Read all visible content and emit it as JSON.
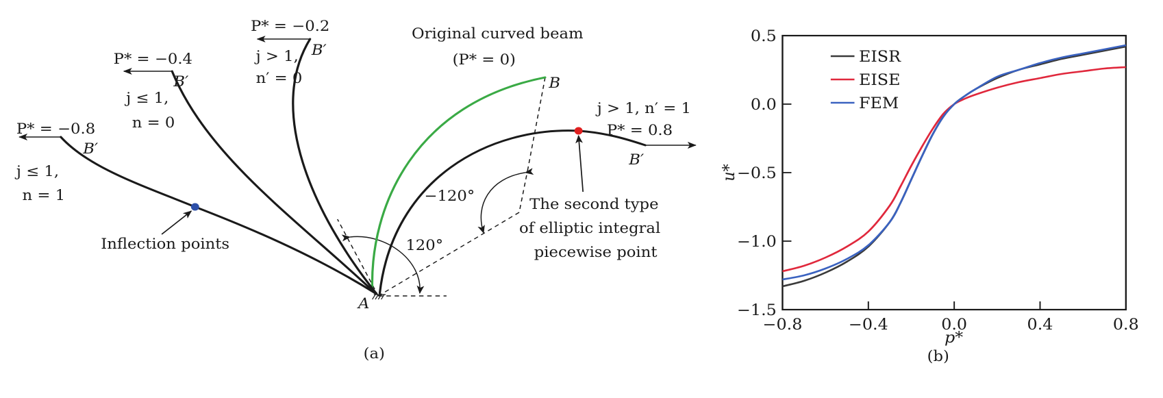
{
  "panel_a": {
    "caption": "(a)",
    "labels": {
      "p_m08": "P* = −0.8",
      "p_m04": "P* = −0.4",
      "p_m02": "P* = −0.2",
      "p_08": "P* = 0.8",
      "cond_m08_1": "j ≤ 1,",
      "cond_m08_2": "n = 1",
      "cond_m04_1": "j ≤ 1,",
      "cond_m04_2": "n = 0",
      "cond_m02_1": "j > 1,",
      "cond_m02_2": "n′ = 0",
      "cond_08": "j > 1,  n′ = 1",
      "b_prime": "B′",
      "b": "B",
      "a": "A",
      "original_1": "Original curved beam",
      "original_2": "(P* = 0)",
      "angle_neg": "−120°",
      "angle_pos": "120°",
      "inflection": "Inflection points",
      "second_type_1": "The second type",
      "second_type_2": "of elliptic integral",
      "second_type_3": "piecewise point"
    },
    "colors": {
      "beam": "#1a1a1a",
      "original": "#3aaa45",
      "inflection": "#2d4fa8",
      "piecewise": "#e02020"
    }
  },
  "chart_data": {
    "type": "line",
    "caption": "(b)",
    "xlabel": "p*",
    "ylabel": "u*",
    "xlim": [
      -0.8,
      0.8
    ],
    "ylim": [
      -1.5,
      0.5
    ],
    "xticks": [
      "−0.8",
      "−0.4",
      "0.0",
      "0.4",
      "0.8"
    ],
    "xtick_values": [
      -0.8,
      -0.4,
      0.0,
      0.4,
      0.8
    ],
    "yticks": [
      "0.5",
      "0.0",
      "−0.5",
      "−1.0",
      "−1.5"
    ],
    "ytick_values": [
      0.5,
      0.0,
      -0.5,
      -1.0,
      -1.5
    ],
    "grid": false,
    "legend": "top-left",
    "x": [
      -0.8,
      -0.7,
      -0.6,
      -0.5,
      -0.4,
      -0.3,
      -0.25,
      -0.2,
      -0.15,
      -0.1,
      -0.05,
      0.0,
      0.05,
      0.1,
      0.2,
      0.3,
      0.4,
      0.5,
      0.6,
      0.7,
      0.8
    ],
    "series": [
      {
        "name": "EISR",
        "color": "#3a3a3a",
        "values": [
          -1.33,
          -1.29,
          -1.23,
          -1.15,
          -1.04,
          -0.86,
          -0.72,
          -0.55,
          -0.38,
          -0.22,
          -0.09,
          0.0,
          0.06,
          0.11,
          0.19,
          0.25,
          0.29,
          0.33,
          0.36,
          0.39,
          0.42
        ]
      },
      {
        "name": "EISE",
        "color": "#e0283c",
        "values": [
          -1.22,
          -1.18,
          -1.12,
          -1.04,
          -0.93,
          -0.74,
          -0.6,
          -0.45,
          -0.31,
          -0.18,
          -0.07,
          0.0,
          0.04,
          0.07,
          0.12,
          0.16,
          0.19,
          0.22,
          0.24,
          0.26,
          0.27
        ]
      },
      {
        "name": "FEM",
        "color": "#3a62c0",
        "values": [
          -1.28,
          -1.25,
          -1.2,
          -1.13,
          -1.03,
          -0.86,
          -0.72,
          -0.55,
          -0.38,
          -0.22,
          -0.09,
          0.0,
          0.06,
          0.11,
          0.2,
          0.25,
          0.3,
          0.34,
          0.37,
          0.4,
          0.43
        ]
      }
    ]
  }
}
